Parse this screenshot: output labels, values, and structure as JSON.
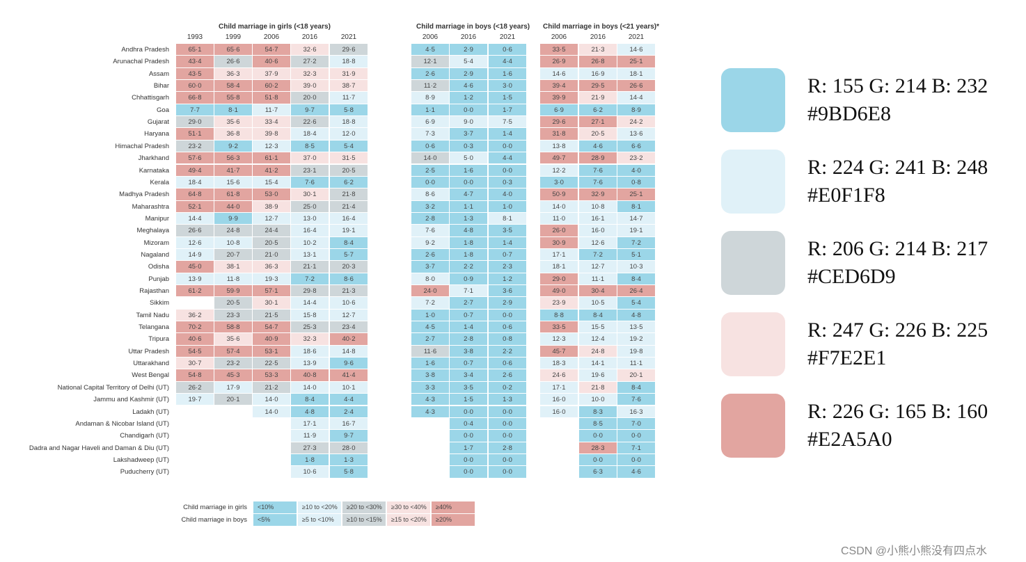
{
  "titles": {
    "girls": "Child marriage in girls (<18 years)",
    "boys18": "Child marriage in boys (<18 years)",
    "boys21": "Child marriage in boys (<21 years)*"
  },
  "years": {
    "girls": [
      "1993",
      "1999",
      "2006",
      "2016",
      "2021"
    ],
    "boys18": [
      "2006",
      "2016",
      "2021"
    ],
    "boys21": [
      "2006",
      "2016",
      "2021"
    ]
  },
  "rows": [
    {
      "name": "Andhra Pradesh",
      "girls": [
        "65·1",
        "65·6",
        "54·7",
        "32·6",
        "29·6"
      ],
      "boys18": [
        "4·5",
        "2·9",
        "0·6"
      ],
      "boys21": [
        "33·5",
        "21·3",
        "14·6"
      ]
    },
    {
      "name": "Arunachal Pradesh",
      "girls": [
        "43·4",
        "26·6",
        "40·6",
        "27·2",
        "18·8"
      ],
      "boys18": [
        "12·1",
        "5·4",
        "4·4"
      ],
      "boys21": [
        "26·9",
        "26·8",
        "25·1"
      ]
    },
    {
      "name": "Assam",
      "girls": [
        "43·5",
        "36·3",
        "37·9",
        "32·3",
        "31·9"
      ],
      "boys18": [
        "2·6",
        "2·9",
        "1·6"
      ],
      "boys21": [
        "14·6",
        "16·9",
        "18·1"
      ]
    },
    {
      "name": "Bihar",
      "girls": [
        "60·0",
        "58·4",
        "60·2",
        "39·0",
        "38·7"
      ],
      "boys18": [
        "11·2",
        "4·6",
        "3·0"
      ],
      "boys21": [
        "39·4",
        "29·5",
        "26·6"
      ]
    },
    {
      "name": "Chhattisgarh",
      "girls": [
        "66·8",
        "55·8",
        "51·8",
        "20·0",
        "11·7"
      ],
      "boys18": [
        "8·9",
        "1·2",
        "1·5"
      ],
      "boys21": [
        "39·9",
        "21·9",
        "14·4"
      ]
    },
    {
      "name": "Goa",
      "girls": [
        "7·7",
        "8·1",
        "11·7",
        "9·7",
        "5·8"
      ],
      "boys18": [
        "1·1",
        "0·0",
        "1·7"
      ],
      "boys21": [
        "6·9",
        "6·2",
        "8·9"
      ]
    },
    {
      "name": "Gujarat",
      "girls": [
        "29·0",
        "35·6",
        "33·4",
        "22·6",
        "18·8"
      ],
      "boys18": [
        "6·9",
        "9·0",
        "7·5"
      ],
      "boys21": [
        "29·6",
        "27·1",
        "24·2"
      ]
    },
    {
      "name": "Haryana",
      "girls": [
        "51·1",
        "36·8",
        "39·8",
        "18·4",
        "12·0"
      ],
      "boys18": [
        "7·3",
        "3·7",
        "1·4"
      ],
      "boys21": [
        "31·8",
        "20·5",
        "13·6"
      ]
    },
    {
      "name": "Himachal Pradesh",
      "girls": [
        "23·2",
        "9·2",
        "12·3",
        "8·5",
        "5·4"
      ],
      "boys18": [
        "0·6",
        "0·3",
        "0·0"
      ],
      "boys21": [
        "13·8",
        "4·6",
        "6·6"
      ]
    },
    {
      "name": "Jharkhand",
      "girls": [
        "57·6",
        "56·3",
        "61·1",
        "37·0",
        "31·5"
      ],
      "boys18": [
        "14·0",
        "5·0",
        "4·4"
      ],
      "boys21": [
        "49·7",
        "28·9",
        "23·2"
      ]
    },
    {
      "name": "Karnataka",
      "girls": [
        "49·4",
        "41·7",
        "41·2",
        "23·1",
        "20·5"
      ],
      "boys18": [
        "2·5",
        "1·6",
        "0·0"
      ],
      "boys21": [
        "12·2",
        "7·6",
        "4·0"
      ]
    },
    {
      "name": "Kerala",
      "girls": [
        "18·4",
        "15·6",
        "15·4",
        "7·6",
        "6·2"
      ],
      "boys18": [
        "0·0",
        "0·0",
        "0·3"
      ],
      "boys21": [
        "3·0",
        "7·6",
        "0·8"
      ]
    },
    {
      "name": "Madhya Pradesh",
      "girls": [
        "64·8",
        "61·8",
        "53·0",
        "30·1",
        "21·8"
      ],
      "boys18": [
        "8·6",
        "4·7",
        "4·0"
      ],
      "boys21": [
        "50·9",
        "32·9",
        "25·1"
      ]
    },
    {
      "name": "Maharashtra",
      "girls": [
        "52·1",
        "44·0",
        "38·9",
        "25·0",
        "21·4"
      ],
      "boys18": [
        "3·2",
        "1·1",
        "1·0"
      ],
      "boys21": [
        "14·0",
        "10·8",
        "8·1"
      ]
    },
    {
      "name": "Manipur",
      "girls": [
        "14·4",
        "9·9",
        "12·7",
        "13·0",
        "16·4"
      ],
      "boys18": [
        "2·8",
        "1·3",
        "8·1"
      ],
      "boys21": [
        "11·0",
        "16·1",
        "14·7"
      ]
    },
    {
      "name": "Meghalaya",
      "girls": [
        "26·6",
        "24·8",
        "24·4",
        "16·4",
        "19·1"
      ],
      "boys18": [
        "7·6",
        "4·8",
        "3·5"
      ],
      "boys21": [
        "26·0",
        "16·0",
        "19·1"
      ]
    },
    {
      "name": "Mizoram",
      "girls": [
        "12·6",
        "10·8",
        "20·5",
        "10·2",
        "8·4"
      ],
      "boys18": [
        "9·2",
        "1·8",
        "1·4"
      ],
      "boys21": [
        "30·9",
        "12·6",
        "7·2"
      ]
    },
    {
      "name": "Nagaland",
      "girls": [
        "14·9",
        "20·7",
        "21·0",
        "13·1",
        "5·7"
      ],
      "boys18": [
        "2·6",
        "1·8",
        "0·7"
      ],
      "boys21": [
        "17·1",
        "7·2",
        "5·1"
      ]
    },
    {
      "name": "Odisha",
      "girls": [
        "45·0",
        "38·1",
        "36·3",
        "21·1",
        "20·3"
      ],
      "boys18": [
        "3·7",
        "2·2",
        "2·3"
      ],
      "boys21": [
        "18·1",
        "12·7",
        "10·3"
      ]
    },
    {
      "name": "Punjab",
      "girls": [
        "13·9",
        "11·8",
        "19·3",
        "7·2",
        "8·6"
      ],
      "boys18": [
        "8·0",
        "0·9",
        "1·2"
      ],
      "boys21": [
        "29·0",
        "11·1",
        "8·4"
      ]
    },
    {
      "name": "Rajasthan",
      "girls": [
        "61·2",
        "59·9",
        "57·1",
        "29·8",
        "21·3"
      ],
      "boys18": [
        "24·0",
        "7·1",
        "3·6"
      ],
      "boys21": [
        "49·0",
        "30·4",
        "26·4"
      ]
    },
    {
      "name": "Sikkim",
      "girls": [
        "",
        "20·5",
        "30·1",
        "14·4",
        "10·6"
      ],
      "boys18": [
        "7·2",
        "2·7",
        "2·9"
      ],
      "boys21": [
        "23·9",
        "10·5",
        "5·4"
      ]
    },
    {
      "name": "Tamil Nadu",
      "girls": [
        "36·2",
        "23·3",
        "21·5",
        "15·8",
        "12·7"
      ],
      "boys18": [
        "1·0",
        "0·7",
        "0·0"
      ],
      "boys21": [
        "8·8",
        "8·4",
        "4·8"
      ]
    },
    {
      "name": "Telangana",
      "girls": [
        "70·2",
        "58·8",
        "54·7",
        "25·3",
        "23·4"
      ],
      "boys18": [
        "4·5",
        "1·4",
        "0·6"
      ],
      "boys21": [
        "33·5",
        "15·5",
        "13·5"
      ]
    },
    {
      "name": "Tripura",
      "girls": [
        "40·6",
        "35·6",
        "40·9",
        "32·3",
        "40·2"
      ],
      "boys18": [
        "2·7",
        "2·8",
        "0·8"
      ],
      "boys21": [
        "12·3",
        "12·4",
        "19·2"
      ]
    },
    {
      "name": "Uttar Pradesh",
      "girls": [
        "54·5",
        "57·4",
        "53·1",
        "18·6",
        "14·8"
      ],
      "boys18": [
        "11·6",
        "3·8",
        "2·2"
      ],
      "boys21": [
        "45·7",
        "24·8",
        "19·8"
      ]
    },
    {
      "name": "Uttarakhand",
      "girls": [
        "30·7",
        "23·2",
        "22·5",
        "13·9",
        "9·6"
      ],
      "boys18": [
        "1·6",
        "0·7",
        "0·6"
      ],
      "boys21": [
        "18·3",
        "14·1",
        "11·1"
      ]
    },
    {
      "name": "West Bengal",
      "girls": [
        "54·8",
        "45·3",
        "53·3",
        "40·8",
        "41·4"
      ],
      "boys18": [
        "3·8",
        "3·4",
        "2·6"
      ],
      "boys21": [
        "24·6",
        "19·6",
        "20·1"
      ]
    },
    {
      "name": "National Capital Territory of Delhi (UT)",
      "girls": [
        "26·2",
        "17·9",
        "21·2",
        "14·0",
        "10·1"
      ],
      "boys18": [
        "3·3",
        "3·5",
        "0·2"
      ],
      "boys21": [
        "17·1",
        "21·8",
        "8·4"
      ]
    },
    {
      "name": "Jammu and Kashmir (UT)",
      "girls": [
        "19·7",
        "20·1",
        "14·0",
        "8·4",
        "4·4"
      ],
      "boys18": [
        "4·3",
        "1·5",
        "1·3"
      ],
      "boys21": [
        "16·0",
        "10·0",
        "7·6"
      ]
    },
    {
      "name": "Ladakh (UT)",
      "girls": [
        "",
        "",
        "14·0",
        "4·8",
        "2·4"
      ],
      "boys18": [
        "4·3",
        "0·0",
        "0·0"
      ],
      "boys21": [
        "16·0",
        "8·3",
        "16·3"
      ]
    },
    {
      "name": "Andaman & Nicobar Island (UT)",
      "girls": [
        "",
        "",
        "",
        "17·1",
        "16·7"
      ],
      "boys18": [
        "",
        "0·4",
        "0·0"
      ],
      "boys21": [
        "",
        "8·5",
        "7·0"
      ]
    },
    {
      "name": "Chandigarh (UT)",
      "girls": [
        "",
        "",
        "",
        "11·9",
        "9·7"
      ],
      "boys18": [
        "",
        "0·0",
        "0·0"
      ],
      "boys21": [
        "",
        "0·0",
        "0·0"
      ]
    },
    {
      "name": "Dadra and Nagar Haveli and Daman & Diu (UT)",
      "girls": [
        "",
        "",
        "",
        "27·3",
        "28·0"
      ],
      "boys18": [
        "",
        "1·7",
        "2·8"
      ],
      "boys21": [
        "",
        "28·3",
        "7·1"
      ]
    },
    {
      "name": "Lakshadweep (UT)",
      "girls": [
        "",
        "",
        "",
        "1·8",
        "1·3"
      ],
      "boys18": [
        "",
        "0·0",
        "0·0"
      ],
      "boys21": [
        "",
        "0·0",
        "0·0"
      ]
    },
    {
      "name": "Puducherry (UT)",
      "girls": [
        "",
        "",
        "",
        "10·6",
        "5·8"
      ],
      "boys18": [
        "",
        "0·0",
        "0·0"
      ],
      "boys21": [
        "",
        "6·3",
        "4·6"
      ]
    }
  ],
  "legend": {
    "girls_label": "Child marriage in girls",
    "boys_label": "Child marriage in boys",
    "girls_bins": [
      "<10%",
      "≥10 to <20%",
      "≥20 to <30%",
      "≥30 to <40%",
      "≥40%"
    ],
    "boys_bins": [
      "<5%",
      "≥5 to <10%",
      "≥10 to <15%",
      "≥15 to <20%",
      "≥20%"
    ]
  },
  "palette": [
    "#9BD6E8",
    "#E0F1F8",
    "#CED6D9",
    "#F7E2E1",
    "#E2A5A0"
  ],
  "swatches": [
    {
      "rgb": "R: 155 G: 214 B: 232",
      "hex": "#9BD6E8"
    },
    {
      "rgb": "R: 224 G: 241 B: 248",
      "hex": "#E0F1F8"
    },
    {
      "rgb": "R: 206 G: 214 B: 217",
      "hex": "#CED6D9"
    },
    {
      "rgb": "R: 247 G: 226 B: 225",
      "hex": "#F7E2E1"
    },
    {
      "rgb": "R: 226 G: 165 B: 160",
      "hex": "#E2A5A0"
    }
  ],
  "watermark": "CSDN @小熊小熊没有四点水"
}
